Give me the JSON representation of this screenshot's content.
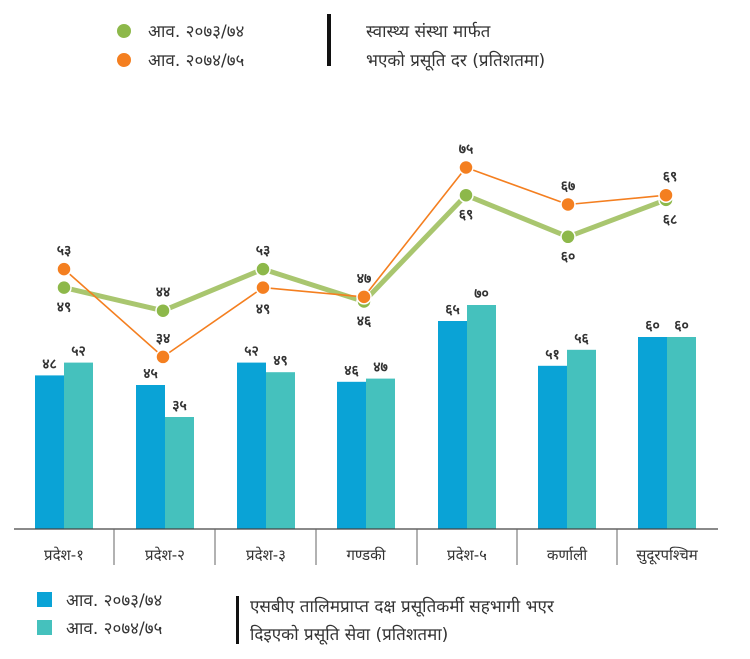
{
  "top_legend": {
    "items": [
      {
        "label": "आव. २०७३/७४",
        "color": "#8db84a"
      },
      {
        "label": "आव. २०७४/७५",
        "color": "#f47f20"
      }
    ],
    "title_lines": [
      "स्वास्थ्य संस्था मार्फत",
      "भएको प्रसूति दर (प्रतिशतमा)"
    ]
  },
  "bottom_legend": {
    "items": [
      {
        "label": "आव. २०७३/७४",
        "color": "#0aa3d6"
      },
      {
        "label": "आव. २०७४/७५",
        "color": "#45c1bd"
      }
    ],
    "title_lines": [
      "एसबीए तालिमप्राप्त दक्ष प्रसूतिकर्मी सहभागी भएर",
      "दिइएको प्रसूति सेवा (प्रतिशतमा)"
    ]
  },
  "chart_data": [
    {
      "type": "line",
      "title": "स्वास्थ्य संस्था मार्फत भएको प्रसूति दर (प्रतिशतमा)",
      "categories": [
        "प्रदेश-१",
        "प्रदेश-२",
        "प्रदेश-३",
        "गण्डकी",
        "प्रदेश-५",
        "कर्णाली",
        "सुदूरपश्चिम"
      ],
      "series": [
        {
          "name": "आव. २०७३/७४",
          "values": [
            49,
            44,
            53,
            46,
            69,
            60,
            68
          ],
          "labels": [
            "४९",
            "४४",
            "५३",
            "४६",
            "६९",
            "६०",
            "६८"
          ],
          "color": "#8db84a"
        },
        {
          "name": "आव. २०७४/७५",
          "values": [
            53,
            34,
            49,
            47,
            75,
            67,
            69
          ],
          "labels": [
            "५३",
            "३४",
            "४९",
            "४७",
            "७५",
            "६७",
            "६९"
          ],
          "color": "#f47f20"
        }
      ],
      "legend": "top-left",
      "grid": false
    },
    {
      "type": "bar",
      "title": "एसबीए तालिमप्राप्त दक्ष प्रसूतिकर्मी सहभागी भएर दिइएको प्रसूति सेवा (प्रतिशतमा)",
      "categories": [
        "प्रदेश-१",
        "प्रदेश-२",
        "प्रदेश-३",
        "गण्डकी",
        "प्रदेश-५",
        "कर्णाली",
        "सुदूरपश्चिम"
      ],
      "series": [
        {
          "name": "आव. २०७३/७४",
          "values": [
            48,
            45,
            52,
            46,
            65,
            51,
            60
          ],
          "labels": [
            "४८",
            "४५",
            "५२",
            "४६",
            "६५",
            "५१",
            "६०"
          ],
          "color": "#0aa3d6"
        },
        {
          "name": "आव. २०७४/७५",
          "values": [
            52,
            35,
            49,
            47,
            70,
            56,
            60
          ],
          "labels": [
            "५२",
            "३५",
            "४९",
            "४७",
            "७०",
            "५६",
            "६०"
          ],
          "color": "#45c1bd"
        }
      ],
      "legend": "bottom-left",
      "grid": false
    }
  ]
}
